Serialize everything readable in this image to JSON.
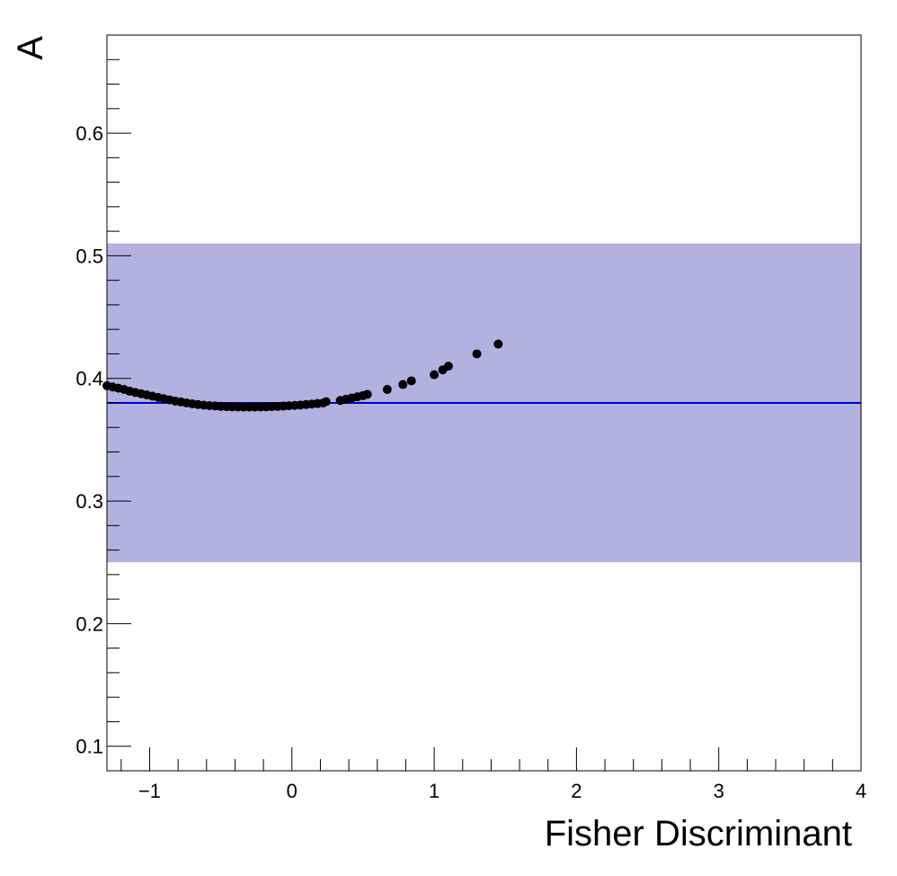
{
  "chart_data": {
    "type": "scatter",
    "title": "",
    "xlabel": "Fisher Discriminant",
    "ylabel": "A",
    "xlim": [
      -1.3,
      4.0
    ],
    "ylim": [
      0.08,
      0.68
    ],
    "x_ticks": [
      -1,
      0,
      1,
      2,
      3,
      4
    ],
    "x_tick_labels": [
      "−1",
      "0",
      "1",
      "2",
      "3",
      "4"
    ],
    "y_ticks": [
      0.1,
      0.2,
      0.3,
      0.4,
      0.5,
      0.6
    ],
    "y_tick_labels": [
      "0.1",
      "0.2",
      "0.3",
      "0.4",
      "0.5",
      "0.6"
    ],
    "grid": false,
    "band": {
      "y_low": 0.25,
      "y_high": 0.51,
      "color": "#b1b2e0"
    },
    "reference_line": {
      "y": 0.38,
      "color": "#0000cc"
    },
    "marker_color": "#000000",
    "points": {
      "x": [
        -1.3,
        -1.26,
        -1.22,
        -1.18,
        -1.14,
        -1.1,
        -1.06,
        -1.02,
        -0.98,
        -0.94,
        -0.9,
        -0.86,
        -0.82,
        -0.78,
        -0.74,
        -0.7,
        -0.66,
        -0.62,
        -0.58,
        -0.54,
        -0.5,
        -0.46,
        -0.42,
        -0.38,
        -0.34,
        -0.3,
        -0.26,
        -0.22,
        -0.18,
        -0.14,
        -0.1,
        -0.06,
        -0.02,
        0.02,
        0.06,
        0.1,
        0.14,
        0.18,
        0.22,
        0.24,
        0.34,
        0.38,
        0.42,
        0.46,
        0.5,
        0.53,
        0.67,
        0.78,
        0.84,
        1.0,
        1.06,
        1.1,
        1.3,
        1.45
      ],
      "y": [
        0.394,
        0.393,
        0.392,
        0.391,
        0.3895,
        0.3885,
        0.3875,
        0.3865,
        0.3855,
        0.3845,
        0.3835,
        0.3825,
        0.3815,
        0.3808,
        0.38,
        0.3793,
        0.3787,
        0.3782,
        0.3778,
        0.3775,
        0.3772,
        0.377,
        0.3768,
        0.3767,
        0.3766,
        0.3766,
        0.3766,
        0.3767,
        0.3768,
        0.377,
        0.3772,
        0.3774,
        0.3777,
        0.378,
        0.3783,
        0.3787,
        0.3791,
        0.3795,
        0.38,
        0.381,
        0.382,
        0.383,
        0.384,
        0.385,
        0.386,
        0.387,
        0.391,
        0.395,
        0.398,
        0.403,
        0.407,
        0.41,
        0.42,
        0.428
      ]
    }
  }
}
